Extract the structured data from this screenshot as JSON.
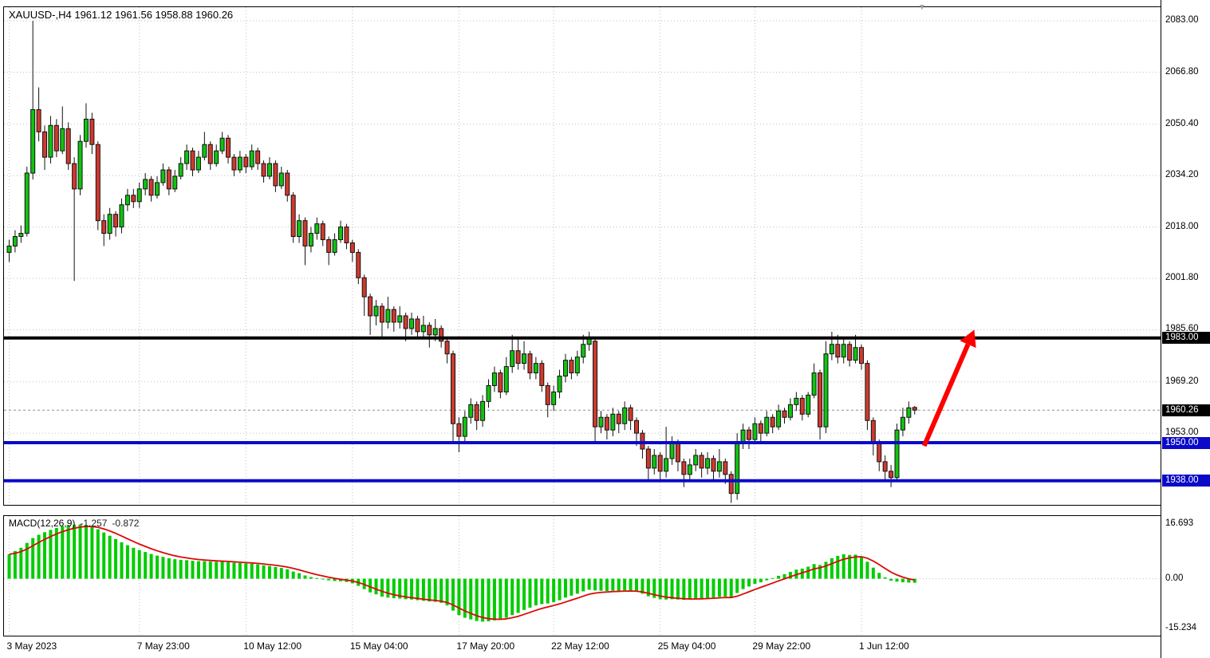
{
  "header": {
    "title": "XAUUSD-,H4 1961.12 1961.56 1958.88 1960.26"
  },
  "colors": {
    "background": "#ffffff",
    "frame": "#000000",
    "grid": "#c0c0c0",
    "candle_up": "#0fc40f",
    "candle_down": "#d0392e",
    "candle_wick": "#111111",
    "candle_border": "#111111",
    "level_black": "#000000",
    "level_blue": "#0a0ac8",
    "current_price_line": "#909090",
    "current_price_tag_bg": "#000000",
    "macd_bar": "#00cc00",
    "macd_signal": "#dd0808",
    "arrow": "#ff0000",
    "axis_text": "#000000",
    "tag_text": "#ffffff",
    "shift_marker": "#999999"
  },
  "chart_data": {
    "type": "candlestick",
    "symbol": "XAUUSD-",
    "timeframe": "H4",
    "title": "XAUUSD-,H4 1961.12 1961.56 1958.88 1960.26",
    "current_bar": {
      "open": "1961.12",
      "high": "1961.56",
      "low": "1958.88",
      "close": "1960.26"
    },
    "price_axis_ticks": [
      "2083.00",
      "2066.80",
      "2050.40",
      "2034.20",
      "2018.00",
      "2001.80",
      "1985.60",
      "1969.20",
      "1953.00"
    ],
    "price_range": {
      "top": 2087.3,
      "bottom": 1930.4
    },
    "time_ticks": [
      {
        "label": "3 May 2023",
        "i": 0
      },
      {
        "label": "7 May 23:00",
        "i": 22
      },
      {
        "label": "10 May 12:00",
        "i": 40
      },
      {
        "label": "15 May 04:00",
        "i": 58
      },
      {
        "label": "17 May 20:00",
        "i": 76
      },
      {
        "label": "22 May 12:00",
        "i": 92
      },
      {
        "label": "25 May 04:00",
        "i": 110
      },
      {
        "label": "29 May 22:00",
        "i": 126
      },
      {
        "label": "1 Jun 12:00",
        "i": 144
      }
    ],
    "ohlc_format": [
      "open",
      "high",
      "low",
      "close"
    ],
    "candles": [
      [
        2010,
        2014,
        2007,
        2012
      ],
      [
        2012,
        2017,
        2010,
        2015
      ],
      [
        2015,
        2018.5,
        2013,
        2016
      ],
      [
        2016,
        2037,
        2015,
        2035
      ],
      [
        2035,
        2083,
        2033,
        2055
      ],
      [
        2055,
        2062,
        2045,
        2048
      ],
      [
        2048,
        2050,
        2036,
        2040
      ],
      [
        2040,
        2053,
        2038,
        2050
      ],
      [
        2050,
        2052,
        2040,
        2042
      ],
      [
        2042,
        2056,
        2041,
        2049
      ],
      [
        2049,
        2051,
        2036,
        2038
      ],
      [
        2038,
        2040,
        2001,
        2030
      ],
      [
        2030,
        2047,
        2028,
        2045
      ],
      [
        2045,
        2057,
        2043,
        2052
      ],
      [
        2052,
        2054,
        2041,
        2044
      ],
      [
        2044,
        2045,
        2017,
        2020
      ],
      [
        2020,
        2022,
        2012,
        2016
      ],
      [
        2016,
        2024,
        2014,
        2022
      ],
      [
        2022,
        2023,
        2015,
        2018
      ],
      [
        2018,
        2027,
        2016,
        2025
      ],
      [
        2025,
        2030,
        2023,
        2028
      ],
      [
        2028,
        2030,
        2024,
        2026
      ],
      [
        2026,
        2032,
        2024,
        2030
      ],
      [
        2030,
        2035,
        2028,
        2033
      ],
      [
        2033,
        2034,
        2026,
        2028
      ],
      [
        2028,
        2034,
        2027,
        2032
      ],
      [
        2032,
        2038,
        2031,
        2036
      ],
      [
        2036,
        2037,
        2028,
        2030
      ],
      [
        2030,
        2036,
        2029,
        2034
      ],
      [
        2034,
        2040,
        2033,
        2038
      ],
      [
        2038,
        2044,
        2036,
        2042
      ],
      [
        2042,
        2043,
        2034,
        2036
      ],
      [
        2036,
        2042,
        2035,
        2040
      ],
      [
        2040,
        2048,
        2039,
        2044
      ],
      [
        2044,
        2045,
        2036,
        2038
      ],
      [
        2038,
        2044,
        2037,
        2042
      ],
      [
        2042,
        2048,
        2041,
        2046
      ],
      [
        2046,
        2047,
        2038,
        2040
      ],
      [
        2040,
        2041,
        2034,
        2036
      ],
      [
        2036,
        2042,
        2035,
        2040
      ],
      [
        2040,
        2041,
        2035,
        2037
      ],
      [
        2037,
        2044,
        2036,
        2042
      ],
      [
        2042,
        2043,
        2036,
        2038
      ],
      [
        2038,
        2039,
        2032,
        2034
      ],
      [
        2034,
        2040,
        2033,
        2038
      ],
      [
        2038,
        2039,
        2029,
        2031
      ],
      [
        2031,
        2037,
        2030,
        2035
      ],
      [
        2035,
        2036,
        2026,
        2028
      ],
      [
        2028,
        2029,
        2013,
        2015
      ],
      [
        2015,
        2022,
        2013,
        2020
      ],
      [
        2020,
        2021,
        2006,
        2012
      ],
      [
        2012,
        2018,
        2010,
        2016
      ],
      [
        2016,
        2021,
        2014,
        2019
      ],
      [
        2019,
        2020,
        2012,
        2014
      ],
      [
        2014,
        2015,
        2006,
        2010
      ],
      [
        2010,
        2016,
        2009,
        2014
      ],
      [
        2014,
        2020,
        2013,
        2018
      ],
      [
        2018,
        2019,
        2011,
        2013
      ],
      [
        2013,
        2014,
        2007,
        2010
      ],
      [
        2010,
        2011,
        2000,
        2002
      ],
      [
        2002,
        2003,
        1990,
        1996
      ],
      [
        1996,
        1997,
        1984,
        1990
      ],
      [
        1990,
        1995,
        1987,
        1993
      ],
      [
        1993,
        1994,
        1983,
        1988
      ],
      [
        1988,
        1996,
        1986,
        1992
      ],
      [
        1992,
        1993,
        1985,
        1988
      ],
      [
        1988,
        1993,
        1986,
        1990
      ],
      [
        1990,
        1991,
        1982,
        1986
      ],
      [
        1986,
        1991,
        1984,
        1989
      ],
      [
        1989,
        1990,
        1983,
        1985
      ],
      [
        1985,
        1990,
        1983,
        1987
      ],
      [
        1987,
        1988,
        1980,
        1984
      ],
      [
        1984,
        1989,
        1982,
        1986
      ],
      [
        1986,
        1987,
        1980,
        1982
      ],
      [
        1982,
        1983,
        1975,
        1978
      ],
      [
        1978,
        1979,
        1950,
        1956
      ],
      [
        1956,
        1958,
        1947,
        1952
      ],
      [
        1952,
        1960,
        1950,
        1958
      ],
      [
        1958,
        1964,
        1956,
        1962
      ],
      [
        1962,
        1963,
        1954,
        1957
      ],
      [
        1957,
        1965,
        1955,
        1963
      ],
      [
        1963,
        1970,
        1961,
        1968
      ],
      [
        1968,
        1974,
        1966,
        1972
      ],
      [
        1972,
        1973,
        1964,
        1966
      ],
      [
        1966,
        1977,
        1965,
        1974
      ],
      [
        1974,
        1984,
        1972,
        1979
      ],
      [
        1979,
        1983,
        1973,
        1975
      ],
      [
        1975,
        1982,
        1973,
        1978
      ],
      [
        1978,
        1979,
        1970,
        1972
      ],
      [
        1972,
        1977,
        1970,
        1975
      ],
      [
        1975,
        1976,
        1966,
        1968
      ],
      [
        1968,
        1969,
        1958,
        1962
      ],
      [
        1962,
        1968,
        1960,
        1966
      ],
      [
        1966,
        1973,
        1964,
        1971
      ],
      [
        1971,
        1978,
        1969,
        1976
      ],
      [
        1976,
        1977,
        1970,
        1972
      ],
      [
        1972,
        1979,
        1971,
        1977
      ],
      [
        1977,
        1984,
        1975,
        1981
      ],
      [
        1981,
        1985,
        1979,
        1983
      ],
      [
        1982,
        1983,
        1950,
        1955
      ],
      [
        1955,
        1960,
        1953,
        1958
      ],
      [
        1958,
        1959,
        1951,
        1954
      ],
      [
        1954,
        1961,
        1952,
        1959
      ],
      [
        1959,
        1960,
        1953,
        1956
      ],
      [
        1956,
        1963,
        1954,
        1961
      ],
      [
        1961,
        1962,
        1954,
        1957
      ],
      [
        1957,
        1958,
        1949,
        1953
      ],
      [
        1953,
        1954,
        1945,
        1948
      ],
      [
        1948,
        1949,
        1938,
        1942
      ],
      [
        1942,
        1948,
        1940,
        1946
      ],
      [
        1946,
        1947,
        1938,
        1941
      ],
      [
        1941,
        1955,
        1939,
        1945
      ],
      [
        1945,
        1952,
        1943,
        1950
      ],
      [
        1950,
        1951,
        1941,
        1944
      ],
      [
        1944,
        1945,
        1936,
        1940
      ],
      [
        1940,
        1945,
        1938,
        1943
      ],
      [
        1943,
        1948,
        1941,
        1946
      ],
      [
        1946,
        1947,
        1939,
        1942
      ],
      [
        1942,
        1947,
        1940,
        1945
      ],
      [
        1945,
        1946,
        1938,
        1941
      ],
      [
        1941,
        1948,
        1939,
        1944
      ],
      [
        1944,
        1945,
        1937,
        1940
      ],
      [
        1940,
        1941,
        1931,
        1934
      ],
      [
        1934,
        1953,
        1932,
        1950
      ],
      [
        1950,
        1956,
        1948,
        1954
      ],
      [
        1954,
        1955,
        1948,
        1951
      ],
      [
        1951,
        1958,
        1950,
        1956
      ],
      [
        1956,
        1957,
        1950,
        1953
      ],
      [
        1953,
        1960,
        1952,
        1958
      ],
      [
        1958,
        1959,
        1953,
        1955
      ],
      [
        1955,
        1962,
        1954,
        1960
      ],
      [
        1960,
        1961,
        1956,
        1958
      ],
      [
        1958,
        1964,
        1957,
        1962
      ],
      [
        1962,
        1966,
        1960,
        1964
      ],
      [
        1964,
        1965,
        1957,
        1959
      ],
      [
        1959,
        1966,
        1958,
        1965
      ],
      [
        1965,
        1975,
        1964,
        1972
      ],
      [
        1972,
        1973,
        1951,
        1955
      ],
      [
        1955,
        1982,
        1953,
        1978
      ],
      [
        1978,
        1985,
        1976,
        1981
      ],
      [
        1981,
        1984,
        1975,
        1977
      ],
      [
        1977,
        1983,
        1975,
        1981
      ],
      [
        1981,
        1982,
        1974,
        1976
      ],
      [
        1976,
        1984,
        1975,
        1980
      ],
      [
        1980,
        1981,
        1973,
        1975
      ],
      [
        1975,
        1976,
        1954,
        1957
      ],
      [
        1957,
        1958,
        1946,
        1950
      ],
      [
        1950,
        1951,
        1941,
        1944
      ],
      [
        1944,
        1946,
        1938,
        1941
      ],
      [
        1941,
        1943,
        1936,
        1939
      ],
      [
        1939,
        1956,
        1938,
        1954
      ],
      [
        1954,
        1961,
        1952,
        1958
      ],
      [
        1958,
        1963,
        1956,
        1961
      ],
      [
        1961.12,
        1961.56,
        1958.88,
        1960.26
      ]
    ],
    "levels": [
      {
        "price": 1983.0,
        "label": "1983.00",
        "color": "#000000",
        "thickness": 4,
        "tag_bg": "#000000"
      },
      {
        "price": 1950.0,
        "label": "1950.00",
        "color": "#0a0ac8",
        "thickness": 4,
        "tag_bg": "#0a0ac8"
      },
      {
        "price": 1938.0,
        "label": "1938.00",
        "color": "#0a0ac8",
        "thickness": 4,
        "tag_bg": "#0a0ac8"
      }
    ],
    "current_price": {
      "value": 1960.26,
      "label": "1960.26"
    },
    "annotations": [
      {
        "type": "arrow",
        "from": {
          "i": 154.6,
          "price": 1949
        },
        "to": {
          "i": 162,
          "price": 1981
        },
        "color": "#ff0000"
      }
    ],
    "macd": {
      "label": "MACD(12,26,9)",
      "macd_value": "-1.257",
      "signal_value": "-0.872",
      "axis_ticks": [
        {
          "label": "16.693",
          "value": 16.693
        },
        {
          "label": "0.00",
          "value": 0
        },
        {
          "label": "-15.234",
          "value": -15.234
        }
      ],
      "range": {
        "top": 19.26,
        "bottom": -17.5
      },
      "histogram": [
        7.5,
        8.5,
        9.5,
        11.0,
        12.5,
        13.5,
        14.3,
        15.0,
        15.6,
        16.1,
        16.4,
        16.6,
        16.7,
        16.5,
        16.0,
        15.2,
        14.2,
        13.2,
        12.2,
        11.2,
        10.3,
        9.5,
        8.8,
        8.2,
        7.6,
        7.1,
        6.7,
        6.3,
        6.0,
        5.8,
        5.7,
        5.5,
        5.4,
        5.4,
        5.3,
        5.2,
        5.2,
        5.1,
        4.9,
        4.8,
        4.7,
        4.6,
        4.4,
        4.1,
        3.9,
        3.6,
        3.3,
        2.9,
        2.2,
        1.7,
        1.0,
        0.5,
        0.2,
        -0.1,
        -0.5,
        -0.7,
        -0.8,
        -1.0,
        -1.4,
        -2.2,
        -3.2,
        -4.2,
        -4.8,
        -5.5,
        -5.8,
        -6.0,
        -6.1,
        -6.3,
        -6.4,
        -6.6,
        -6.8,
        -7.0,
        -7.1,
        -7.4,
        -8.2,
        -9.8,
        -11.2,
        -12.0,
        -12.5,
        -13.0,
        -13.2,
        -13.1,
        -12.8,
        -12.6,
        -12.0,
        -11.2,
        -10.5,
        -9.6,
        -8.9,
        -8.2,
        -7.8,
        -7.6,
        -7.2,
        -6.6,
        -5.8,
        -5.2,
        -4.6,
        -3.9,
        -3.4,
        -3.6,
        -3.7,
        -3.8,
        -3.7,
        -3.7,
        -3.6,
        -3.7,
        -4.0,
        -4.6,
        -5.4,
        -5.9,
        -6.3,
        -6.4,
        -6.3,
        -6.4,
        -6.5,
        -6.4,
        -6.2,
        -6.1,
        -5.9,
        -5.8,
        -5.6,
        -5.5,
        -5.8,
        -4.4,
        -3.2,
        -2.4,
        -1.6,
        -1.1,
        -0.5,
        0.2,
        0.9,
        1.4,
        2.1,
        2.8,
        3.1,
        3.7,
        4.5,
        4.2,
        5.2,
        6.3,
        7.0,
        7.5,
        7.3,
        7.4,
        6.9,
        5.2,
        3.4,
        1.8,
        0.4,
        -0.6,
        -0.9,
        -1.1,
        -1.2,
        -1.257
      ]
    }
  }
}
